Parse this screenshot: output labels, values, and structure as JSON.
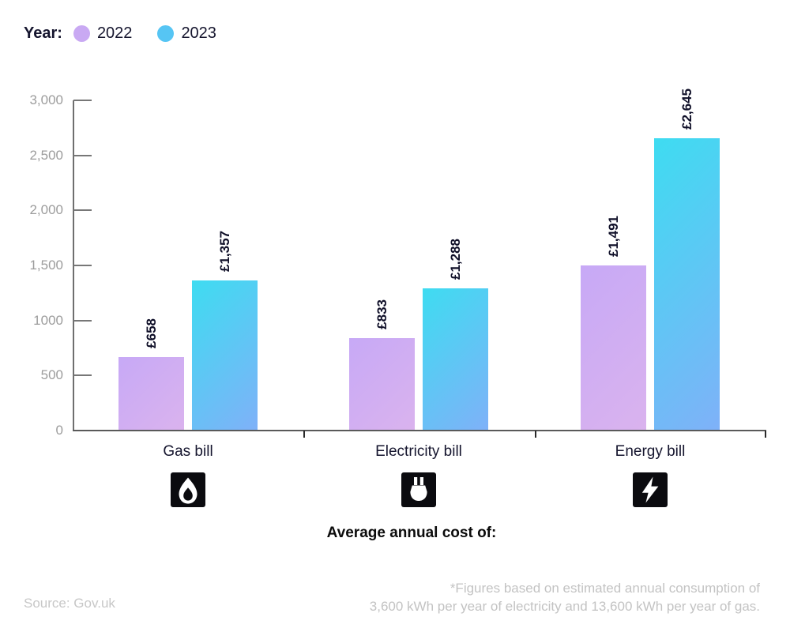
{
  "legend": {
    "title": "Year:",
    "items": [
      {
        "label": "2022",
        "color": "#c9a9f3"
      },
      {
        "label": "2023",
        "color": "#56c5f4"
      }
    ]
  },
  "chart_data": {
    "type": "bar",
    "categories": [
      "Gas bill",
      "Electricity bill",
      "Energy bill"
    ],
    "category_icons": [
      "flame-icon",
      "plug-icon",
      "bolt-icon"
    ],
    "series": [
      {
        "name": "2022",
        "values": [
          658,
          833,
          1491
        ],
        "labels": [
          "£658",
          "£833",
          "£1,491"
        ],
        "gradient_start": "#c7a9f6",
        "gradient_end": "#dab3ee"
      },
      {
        "name": "2023",
        "values": [
          1357,
          1288,
          2645
        ],
        "labels": [
          "£1,357",
          "£1,288",
          "£2,645"
        ],
        "gradient_start": "#3edcf1",
        "gradient_end": "#7fb1f8"
      }
    ],
    "title": "",
    "xlabel": "Average annual cost of:",
    "ylabel": "",
    "ylim": [
      0,
      3000
    ],
    "yticks": {
      "values": [
        0,
        500,
        1000,
        1500,
        2000,
        2500,
        3000
      ],
      "labels": [
        "0",
        "500",
        "1000",
        "1,500",
        "2,000",
        "2,500",
        "3,000"
      ]
    },
    "grid": false,
    "legend_position": "top-left"
  },
  "footer": {
    "source": "Source: Gov.uk",
    "note_line1": "*Figures based on estimated annual consumption of",
    "note_line2": "3,600 kWh per year of electricity and 13,600 kWh per year of gas."
  }
}
